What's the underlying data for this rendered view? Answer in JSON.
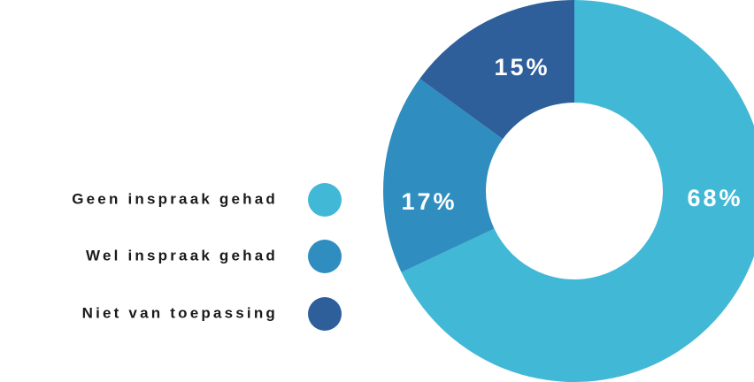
{
  "chart_data": {
    "type": "donut",
    "categories": [
      "Geen inspraak gehad",
      "Wel inspraak gehad",
      "Niet van toepassing"
    ],
    "values": [
      68,
      17,
      15
    ],
    "value_labels": [
      "68%",
      "17%",
      "15%"
    ],
    "colors": [
      "#42b8d7",
      "#2f8ebf",
      "#2e5f9b"
    ]
  }
}
